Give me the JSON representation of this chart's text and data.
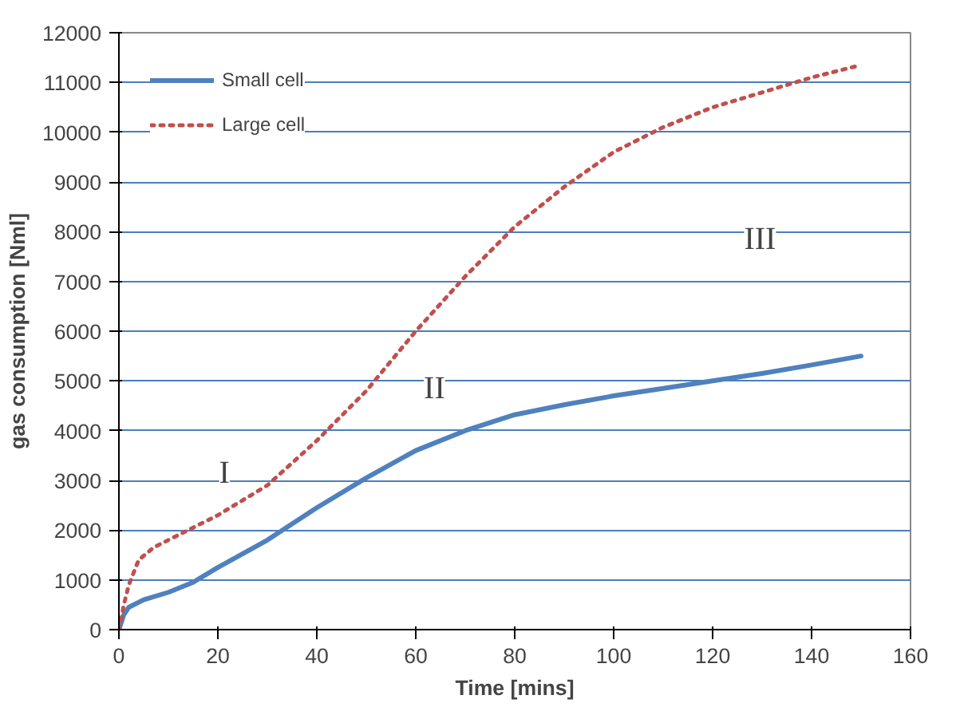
{
  "chart_data": {
    "type": "line",
    "xlabel": "Time [mins]",
    "ylabel": "gas consumption [Nml]",
    "xlim": [
      0,
      160
    ],
    "xticks": [
      0,
      20,
      40,
      60,
      80,
      100,
      120,
      140,
      160
    ],
    "ylim": [
      0,
      12000
    ],
    "yticks": [
      0,
      1000,
      2000,
      3000,
      4000,
      5000,
      6000,
      7000,
      8000,
      9000,
      10000,
      11000,
      12000
    ],
    "grid": "y",
    "legend": "top left",
    "marker": "none",
    "series": [
      {
        "name": "Small cell",
        "color": "#4f81bd",
        "line_style": "solid",
        "x": [
          0,
          1,
          2,
          5,
          10,
          15,
          20,
          30,
          40,
          50,
          60,
          70,
          80,
          90,
          100,
          110,
          120,
          130,
          140,
          150
        ],
        "values": [
          0,
          300,
          450,
          600,
          750,
          950,
          1250,
          1800,
          2450,
          3050,
          3600,
          4000,
          4320,
          4520,
          4700,
          4850,
          5000,
          5150,
          5320,
          5500
        ]
      },
      {
        "name": "Large cell",
        "color": "#c0504d",
        "line_style": "dotted",
        "x": [
          0,
          1,
          2,
          4,
          7,
          10,
          20,
          30,
          40,
          50,
          60,
          70,
          80,
          90,
          100,
          110,
          120,
          130,
          140,
          150
        ],
        "values": [
          0,
          500,
          900,
          1400,
          1650,
          1800,
          2300,
          2900,
          3800,
          4800,
          6000,
          7100,
          8100,
          8900,
          9600,
          10100,
          10500,
          10800,
          11100,
          11350
        ]
      }
    ],
    "annotations": [
      "I",
      "II",
      "III"
    ]
  }
}
